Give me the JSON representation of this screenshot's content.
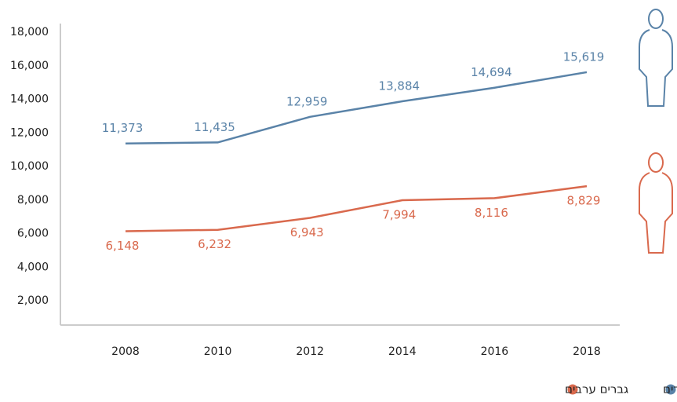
{
  "chart_data": {
    "type": "line",
    "categories": [
      "2008",
      "2010",
      "2012",
      "2014",
      "2016",
      "2018"
    ],
    "series": [
      {
        "name": "גברים יהודים",
        "color": "#5a83a8",
        "values": [
          11373,
          11435,
          12959,
          13884,
          14694,
          15619
        ],
        "value_labels": [
          "11,373",
          "11,435",
          "12,959",
          "13,884",
          "14,694",
          "15,619"
        ]
      },
      {
        "name": "גברים ערבים",
        "color": "#d9694d",
        "values": [
          6148,
          6232,
          6943,
          7994,
          8116,
          8829
        ],
        "value_labels": [
          "6,148",
          "6,232",
          "6,943",
          "7,994",
          "8,116",
          "8,829"
        ]
      }
    ],
    "ylim": [
      0,
      18000
    ],
    "yticks": [
      {
        "value": 2000,
        "label": "2,000"
      },
      {
        "value": 4000,
        "label": "4,000"
      },
      {
        "value": 6000,
        "label": "6,000"
      },
      {
        "value": 8000,
        "label": "8,000"
      },
      {
        "value": 10000,
        "label": "10,000"
      },
      {
        "value": 12000,
        "label": "12,000"
      },
      {
        "value": 14000,
        "label": "14,000"
      },
      {
        "value": 16000,
        "label": "16,000"
      },
      {
        "value": 18000,
        "label": "18,000"
      }
    ],
    "grid": false
  }
}
